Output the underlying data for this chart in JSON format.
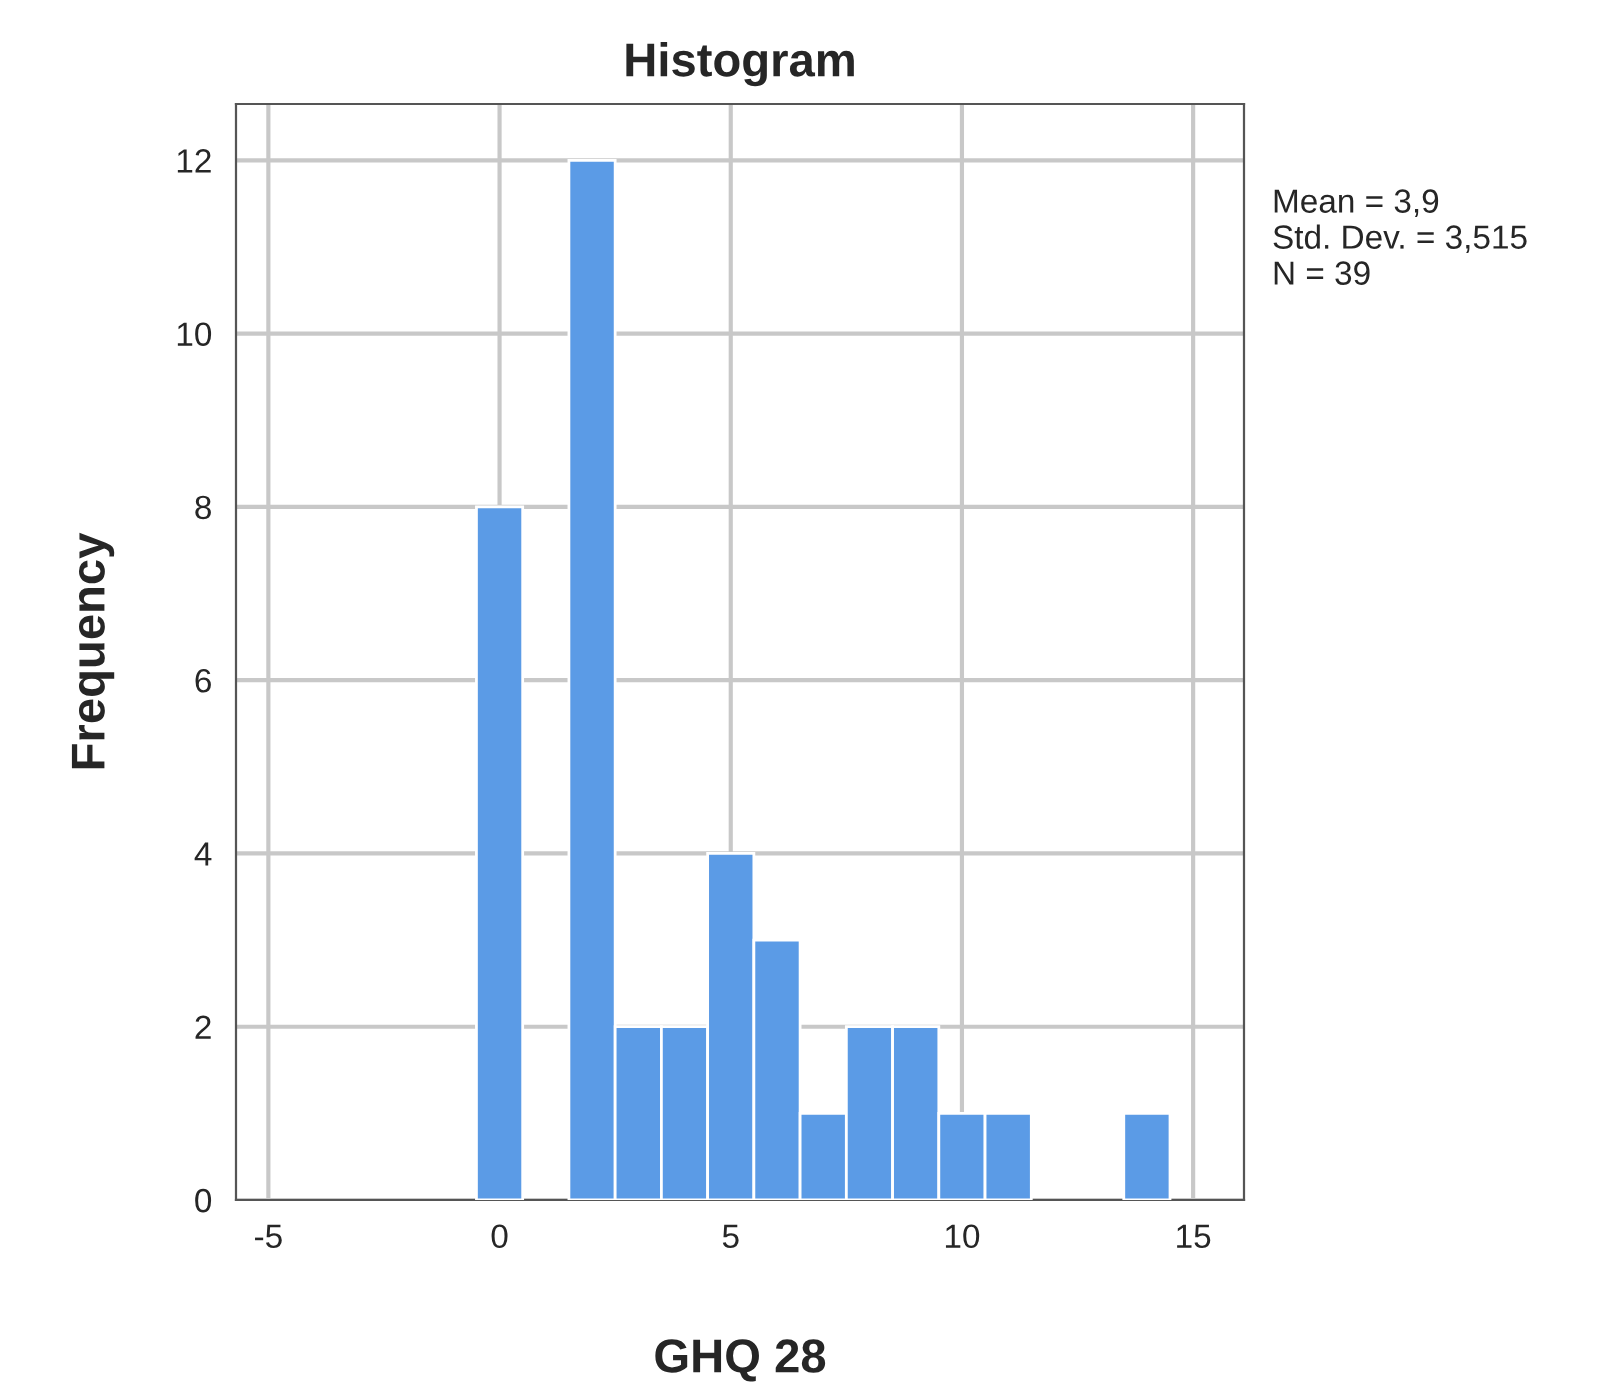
{
  "chart_data": {
    "type": "histogram",
    "title": "Histogram",
    "xlabel": "GHQ 28",
    "ylabel": "Frequency",
    "bins": [
      -0.5,
      0.5,
      1.5,
      2.5,
      3.5,
      4.5,
      5.5,
      6.5,
      7.5,
      8.5,
      9.5,
      10.5,
      11.5,
      12.5,
      13.5,
      14.5
    ],
    "values": [
      8,
      0,
      12,
      2,
      2,
      4,
      3,
      1,
      2,
      2,
      1,
      1,
      0,
      0,
      1
    ],
    "color": "#5b9be6",
    "xlim": [
      -5.7,
      16.1
    ],
    "xticks": [
      -5,
      0,
      5,
      10,
      15
    ],
    "ylim": [
      0,
      12.65
    ],
    "yticks": [
      0,
      2,
      4,
      6,
      8,
      10,
      12
    ],
    "grid": true,
    "annotations": [
      "Mean = 3,9",
      "Std. Dev. = 3,515",
      "N = 39"
    ]
  }
}
